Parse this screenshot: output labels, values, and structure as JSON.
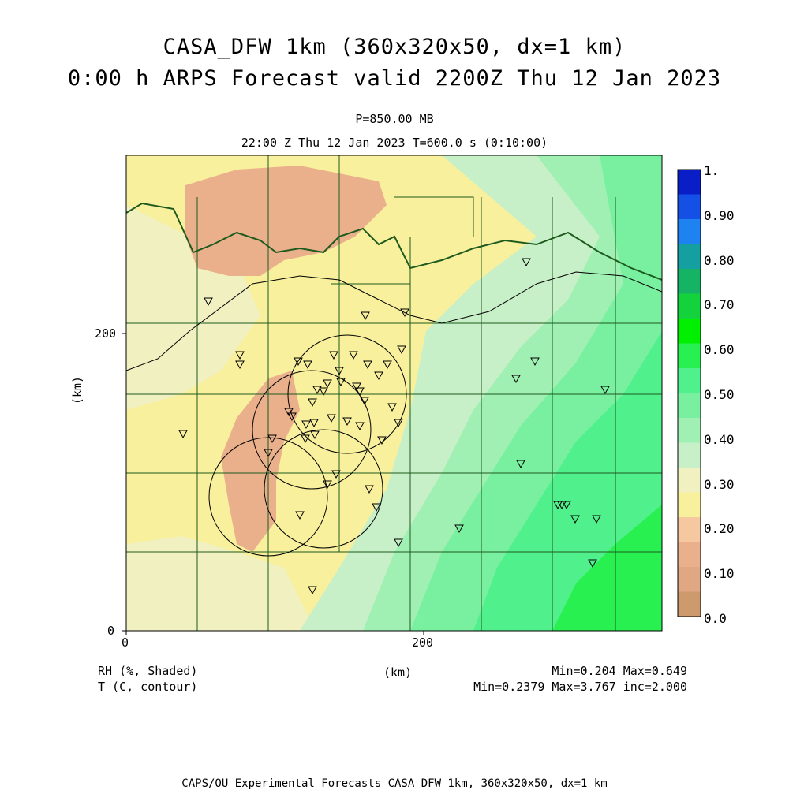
{
  "title": {
    "line1": "CASA_DFW 1km (360x320x50, dx=1 km)",
    "line2": "0:00 h ARPS Forecast valid 2200Z Thu 12 Jan 2023"
  },
  "subtitle": {
    "pressure": "P=850.00 MB",
    "time": "22:00 Z Thu 12 Jan 2023   T=600.0 s (0:10:00)"
  },
  "axes": {
    "ylabel": "(km)",
    "xlabel": "(km)",
    "x_ticks": [
      "0",
      "200"
    ],
    "y_ticks": [
      "0",
      "200"
    ]
  },
  "colorbar": {
    "labels": [
      "1.",
      "0.90",
      "0.80",
      "0.70",
      "0.60",
      "0.50",
      "0.40",
      "0.30",
      "0.20",
      "0.10",
      "0.0"
    ],
    "colors": [
      "#0a1ec8",
      "#1450e6",
      "#1e82f0",
      "#14a0a0",
      "#14b464",
      "#14d23c",
      "#00f000",
      "#28f050",
      "#50f08c",
      "#78f0a0",
      "#a0f0b4",
      "#c8f0c8",
      "#f0f0c0",
      "#f8f09c",
      "#f5c8a0",
      "#eab08c",
      "#e0a882",
      "#cc9a6c"
    ]
  },
  "legend": {
    "shaded": "RH (%, Shaded)",
    "contour": "T (C, contour)",
    "shaded_stats": "Min=0.204 Max=0.649",
    "contour_stats": "Min=0.2379 Max=3.767 inc=2.000"
  },
  "footer": "CAPS/OU Experimental Forecasts  CASA DFW 1km, 360x320x50, dx=1 km",
  "colors": {
    "dry": "#eab08c",
    "mid": "#f8f09c",
    "light": "#f0f0c0",
    "moist1": "#c8f0c8",
    "moist2": "#a0f0b4",
    "moist3": "#78f0a0",
    "moist4": "#50f08c",
    "moist5": "#28f050",
    "border": "#1e5a1e"
  }
}
